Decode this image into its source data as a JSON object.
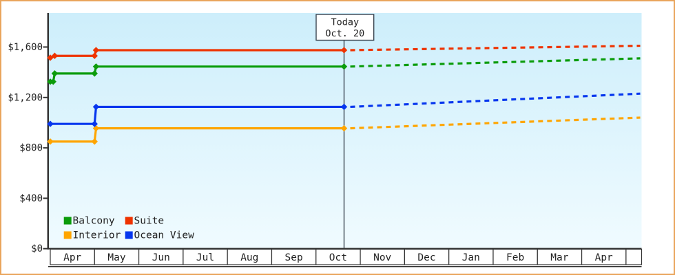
{
  "chart_data": {
    "type": "line",
    "description": "Cruise cabin price history (solid) and forecast (dashed) by cabin type",
    "x_axis": {
      "months": [
        "Apr",
        "May",
        "Jun",
        "Jul",
        "Aug",
        "Sep",
        "Oct",
        "Nov",
        "Dec",
        "Jan",
        "Feb",
        "Mar",
        "Apr"
      ]
    },
    "y_axis": {
      "tick_labels": [
        "$0",
        "$400",
        "$800",
        "$1,200",
        "$1,600"
      ],
      "tick_values": [
        0,
        400,
        800,
        1200,
        1600
      ],
      "range": [
        0,
        1870
      ],
      "grid": "off"
    },
    "today": {
      "line1": "Today",
      "line2": "Oct. 20",
      "month_index": 6,
      "day": 20
    },
    "points_format": "[month_index_from_april, day_of_month, price_usd]",
    "series": [
      {
        "key": "balcony",
        "name": "Balcony",
        "color": "#0b9c0b",
        "points": [
          [
            0,
            1,
            1325
          ],
          [
            0,
            3,
            1325
          ],
          [
            0,
            4,
            1390
          ],
          [
            1,
            1,
            1390
          ],
          [
            1,
            2,
            1445
          ],
          [
            6,
            20,
            1445
          ]
        ],
        "value_today": 1445,
        "projection_end_value": 1510
      },
      {
        "key": "suite",
        "name": "Suite",
        "color": "#ee3300",
        "points": [
          [
            0,
            1,
            1515
          ],
          [
            0,
            4,
            1530
          ],
          [
            1,
            1,
            1530
          ],
          [
            1,
            2,
            1575
          ],
          [
            6,
            20,
            1575
          ]
        ],
        "value_today": 1575,
        "projection_end_value": 1610
      },
      {
        "key": "interior",
        "name": "Interior",
        "color": "#ffa500",
        "points": [
          [
            0,
            1,
            850
          ],
          [
            1,
            1,
            850
          ],
          [
            1,
            2,
            955
          ],
          [
            6,
            20,
            955
          ]
        ],
        "value_today": 955,
        "projection_end_value": 1040
      },
      {
        "key": "ocean-view",
        "name": "Ocean View",
        "color": "#0636ee",
        "points": [
          [
            0,
            1,
            990
          ],
          [
            1,
            1,
            990
          ],
          [
            1,
            2,
            1125
          ],
          [
            6,
            20,
            1125
          ]
        ],
        "value_today": 1125,
        "projection_end_value": 1230
      }
    ],
    "legend": {
      "position": "bottom-left",
      "entries": [
        {
          "label": "Balcony",
          "color": "#0b9c0b"
        },
        {
          "label": "Suite",
          "color": "#ee3300"
        },
        {
          "label": "Interior",
          "color": "#ffa500"
        },
        {
          "label": "Ocean View",
          "color": "#0636ee"
        }
      ]
    },
    "styles": {
      "page_border_color": "#e9a55c",
      "axis_color": "#333333",
      "plot_gradient_top": "#cdeefb",
      "plot_gradient_bottom": "#f0fbff",
      "text_color": "#222222"
    }
  }
}
